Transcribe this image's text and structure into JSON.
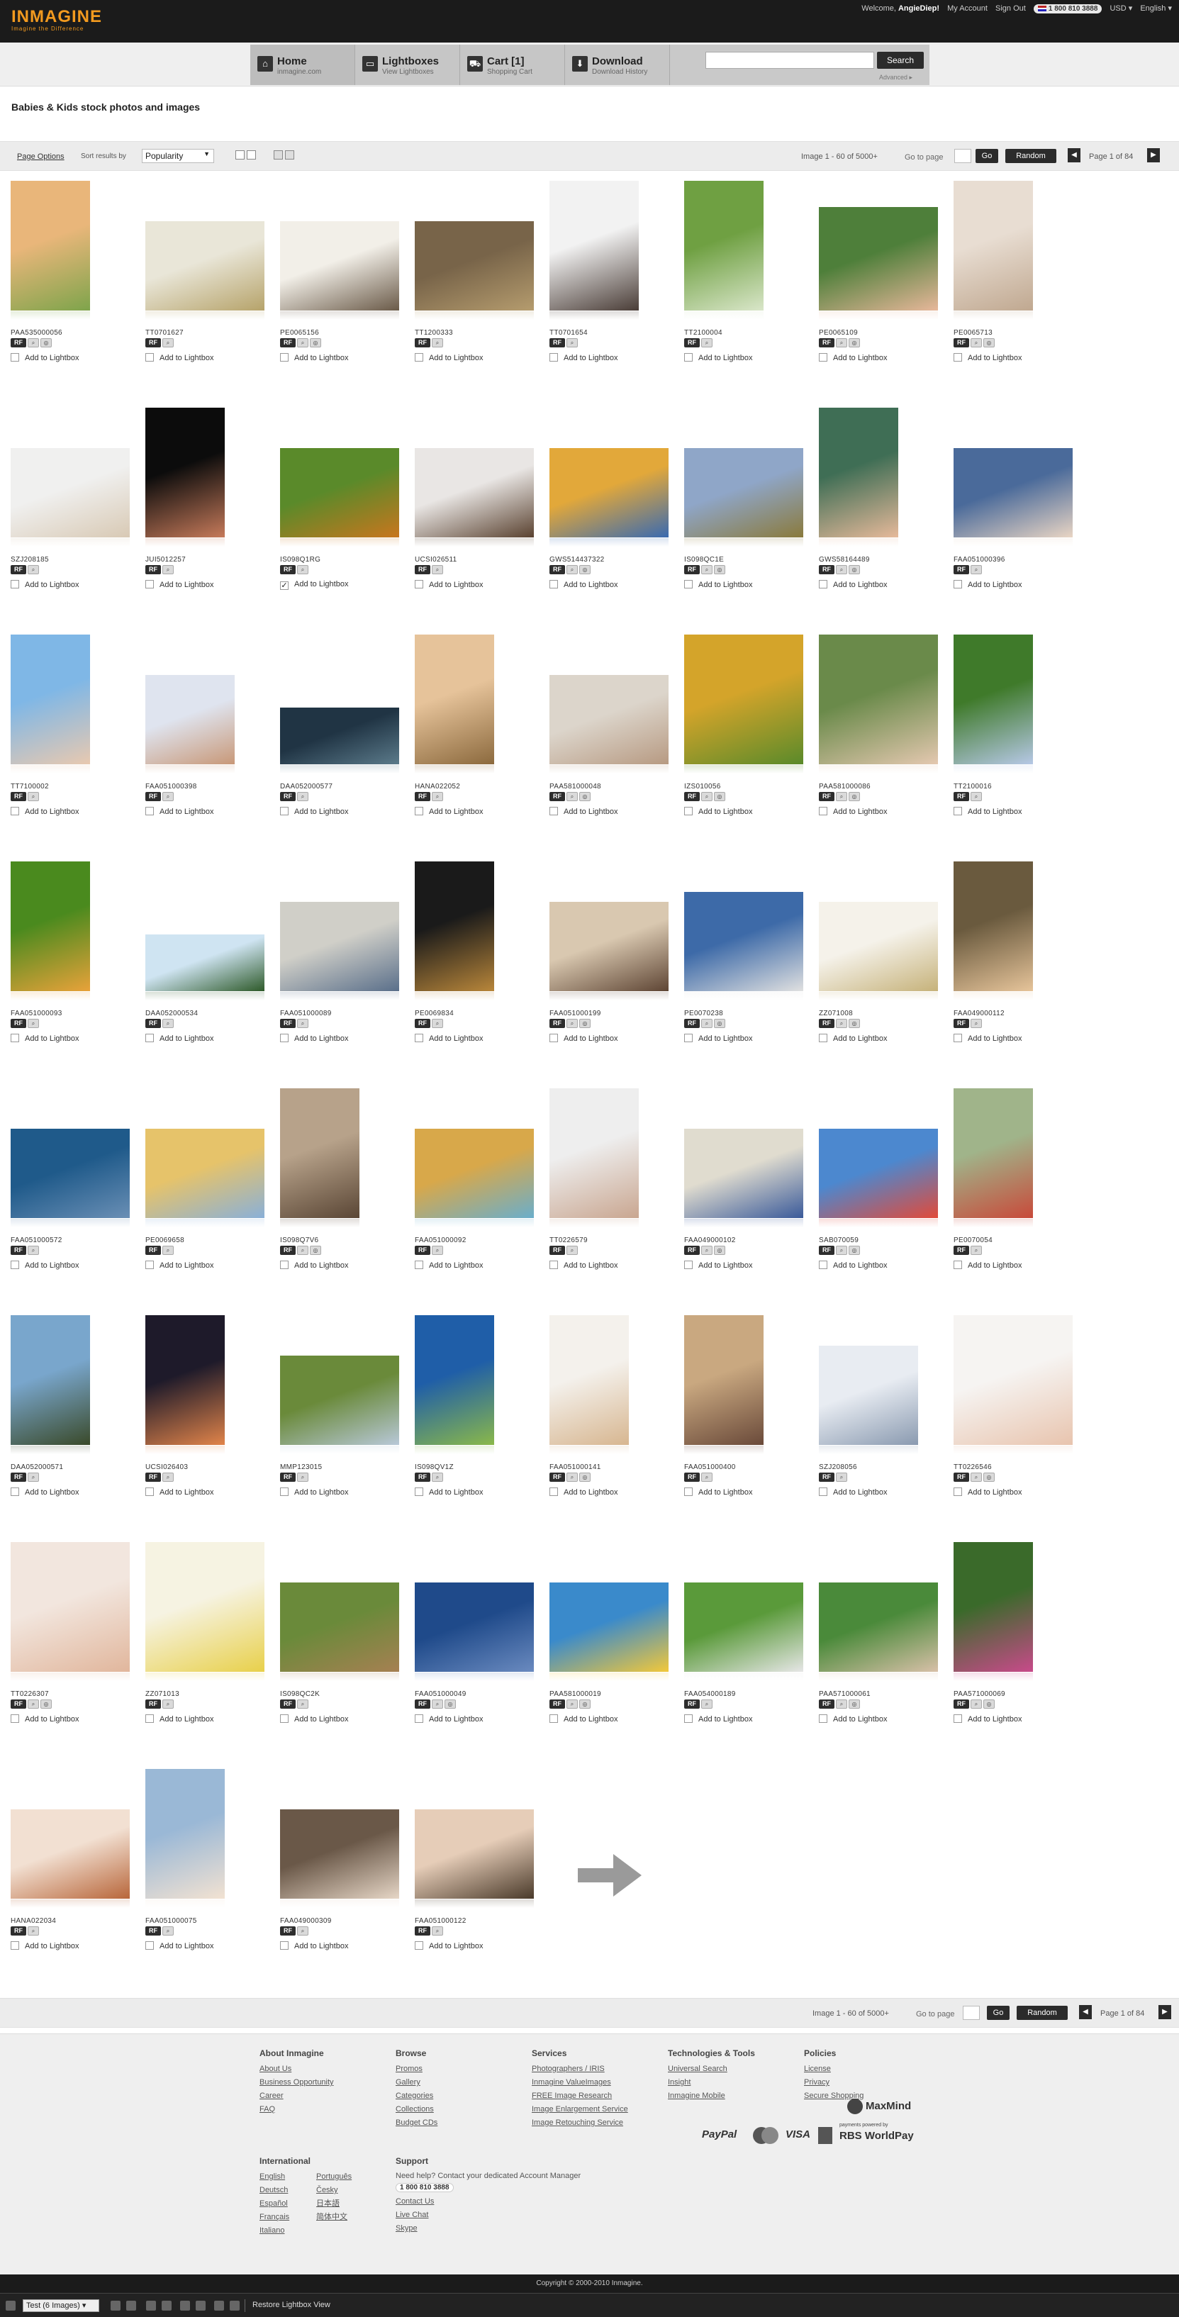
{
  "logo": {
    "text": "INMAGINE",
    "tagline": "Imagine the Difference"
  },
  "topbar": {
    "welcome": "Welcome,",
    "username": "AngieDiep!",
    "my_account": "My Account",
    "sign_out": "Sign Out",
    "phone": "1 800 810 3888",
    "currency": "USD",
    "language": "English"
  },
  "nav": {
    "tabs": [
      {
        "title": "Home",
        "subtitle": "inmagine.com",
        "icon": "home-icon"
      },
      {
        "title": "Lightboxes",
        "subtitle": "View Lightboxes",
        "icon": "folder-icon"
      },
      {
        "title": "Cart [1]",
        "subtitle": "Shopping Cart",
        "icon": "cart-icon"
      },
      {
        "title": "Download",
        "subtitle": "Download History",
        "icon": "download-icon"
      }
    ],
    "search_placeholder": "",
    "search_button": "Search",
    "advanced": "Advanced"
  },
  "page_title": "Babies & Kids stock photos and images",
  "options": {
    "page_options": "Page Options",
    "sort_label": "Sort results by",
    "sort_value": "Popularity",
    "image_count": "Image 1 - 60 of 5000+",
    "go_to_page": "Go to page",
    "go_button": "Go",
    "random_button": "Random",
    "page_text": "Page 1 of 84"
  },
  "add_label": "Add to Lightbox",
  "rf_label": "RF",
  "images": [
    {
      "code": "PAA535000056",
      "checked": false
    },
    {
      "code": "TT0701627",
      "checked": false
    },
    {
      "code": "PE0065156",
      "checked": false
    },
    {
      "code": "TT1200333",
      "checked": false
    },
    {
      "code": "TT0701654",
      "checked": false
    },
    {
      "code": "TT2100004",
      "checked": false
    },
    {
      "code": "PE0065109",
      "checked": false
    },
    {
      "code": "PE0065713",
      "checked": false
    },
    {
      "code": "SZJ208185",
      "checked": false
    },
    {
      "code": "JUI5012257",
      "checked": false
    },
    {
      "code": "IS098Q1RG",
      "checked": true
    },
    {
      "code": "UCSI026511",
      "checked": false
    },
    {
      "code": "GWS514437322",
      "checked": false
    },
    {
      "code": "IS098QC1E",
      "checked": false
    },
    {
      "code": "GWS58164489",
      "checked": false
    },
    {
      "code": "FAA051000396",
      "checked": false
    },
    {
      "code": "TT7100002",
      "checked": false
    },
    {
      "code": "FAA051000398",
      "checked": false
    },
    {
      "code": "DAA052000577",
      "checked": false
    },
    {
      "code": "HANA022052",
      "checked": false
    },
    {
      "code": "PAA581000048",
      "checked": false
    },
    {
      "code": "IZS010056",
      "checked": false
    },
    {
      "code": "PAA581000086",
      "checked": false
    },
    {
      "code": "TT2100016",
      "checked": false
    },
    {
      "code": "FAA051000093",
      "checked": false
    },
    {
      "code": "DAA052000534",
      "checked": false
    },
    {
      "code": "FAA051000089",
      "checked": false
    },
    {
      "code": "PE0069834",
      "checked": false
    },
    {
      "code": "FAA051000199",
      "checked": false
    },
    {
      "code": "PE0070238",
      "checked": false
    },
    {
      "code": "ZZ071008",
      "checked": false
    },
    {
      "code": "FAA049000112",
      "checked": false
    },
    {
      "code": "FAA051000572",
      "checked": false
    },
    {
      "code": "PE0069658",
      "checked": false
    },
    {
      "code": "IS098Q7V6",
      "checked": false
    },
    {
      "code": "FAA051000092",
      "checked": false
    },
    {
      "code": "TT0226579",
      "checked": false
    },
    {
      "code": "FAA049000102",
      "checked": false
    },
    {
      "code": "SAB070059",
      "checked": false
    },
    {
      "code": "PE0070054",
      "checked": false
    },
    {
      "code": "DAA052000571",
      "checked": false
    },
    {
      "code": "UCSI026403",
      "checked": false
    },
    {
      "code": "MMP123015",
      "checked": false
    },
    {
      "code": "IS098QV1Z",
      "checked": false
    },
    {
      "code": "FAA051000141",
      "checked": false
    },
    {
      "code": "FAA051000400",
      "checked": false
    },
    {
      "code": "SZJ208056",
      "checked": false
    },
    {
      "code": "TT0226546",
      "checked": false
    },
    {
      "code": "TT0226307",
      "checked": false
    },
    {
      "code": "ZZ071013",
      "checked": false
    },
    {
      "code": "IS098QC2K",
      "checked": false
    },
    {
      "code": "FAA051000049",
      "checked": false
    },
    {
      "code": "PAA581000019",
      "checked": false
    },
    {
      "code": "FAA054000189",
      "checked": false
    },
    {
      "code": "PAA571000061",
      "checked": false
    },
    {
      "code": "PAA571000069",
      "checked": false
    },
    {
      "code": "HANA022034",
      "checked": false
    },
    {
      "code": "FAA051000075",
      "checked": false
    },
    {
      "code": "FAA049000309",
      "checked": false
    },
    {
      "code": "FAA051000122",
      "checked": false
    }
  ],
  "footer": {
    "about": {
      "title": "About Inmagine",
      "links": [
        "About Us",
        "Business Opportunity",
        "Career",
        "FAQ"
      ]
    },
    "browse": {
      "title": "Browse",
      "links": [
        "Promos",
        "Gallery",
        "Categories",
        "Collections",
        "Budget CDs"
      ]
    },
    "services": {
      "title": "Services",
      "links": [
        "Photographers / IRIS",
        "Inmagine ValueImages",
        "FREE Image Research",
        "Image Enlargement Service",
        "Image Retouching Service"
      ]
    },
    "tech": {
      "title": "Technologies & Tools",
      "links": [
        "Universal Search",
        "Insight",
        "Inmagine Mobile"
      ]
    },
    "policies": {
      "title": "Policies",
      "links": [
        "License",
        "Privacy",
        "Secure Shopping"
      ]
    },
    "international": {
      "title": "International",
      "col1": [
        "English",
        "Deutsch",
        "Español",
        "Français",
        "Italiano"
      ],
      "col2": [
        "Português",
        "Česky",
        "日本語",
        "简体中文"
      ]
    },
    "support": {
      "title": "Support",
      "note": "Need help? Contact your dedicated Account Manager",
      "phone": "1 800 810 3888",
      "links": [
        "Contact Us",
        "Live Chat",
        "Skype"
      ]
    },
    "payments": {
      "paypal": "PayPal",
      "mastercard": "MasterCard",
      "visa": "VISA",
      "maxmind": "MaxMind",
      "powered": "payments powered by",
      "rbs": "RBS WorldPay"
    }
  },
  "copyright": "Copyright © 2000-2010 Inmagine.",
  "bottombar": {
    "select": "Test (6 Images)",
    "restore": "Restore Lightbox View"
  }
}
